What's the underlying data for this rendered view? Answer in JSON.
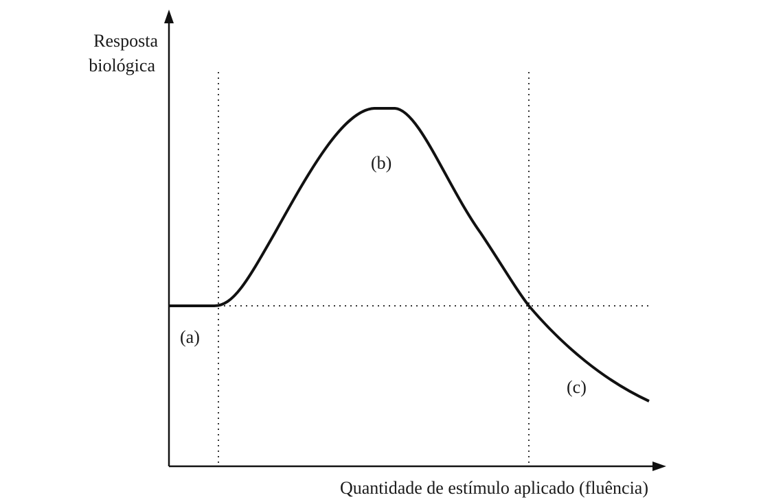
{
  "axes": {
    "y_label_lines": [
      "Resposta",
      "biológica"
    ],
    "x_label": "Quantidade de estímulo aplicado (fluência)"
  },
  "regions": [
    "(a)",
    "(b)",
    "(c)"
  ]
}
